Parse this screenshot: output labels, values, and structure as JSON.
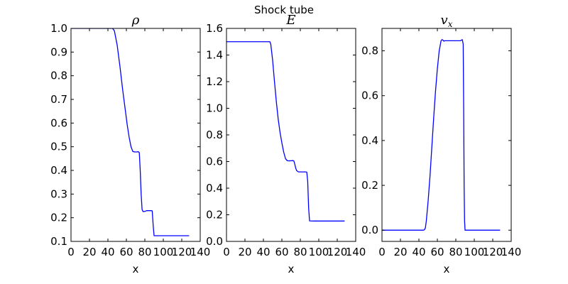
{
  "figure": {
    "title": "Shock tube"
  },
  "chart_data": [
    {
      "type": "line",
      "title": "ρ",
      "xlabel": "x",
      "ylabel": "",
      "xlim": [
        0,
        140
      ],
      "ylim": [
        0.1,
        1.0
      ],
      "xticks": [
        0,
        20,
        40,
        60,
        80,
        100,
        120,
        140
      ],
      "yticks": [
        0.1,
        0.2,
        0.3,
        0.4,
        0.5,
        0.6,
        0.7,
        0.8,
        0.9,
        1.0
      ],
      "ytick_labels": [
        "0.1",
        "0.2",
        "0.3",
        "0.4",
        "0.5",
        "0.6",
        "0.7",
        "0.8",
        "0.9",
        "1.0"
      ],
      "grid": false,
      "color": "#0000ff",
      "series": [
        {
          "x": [
            0,
            45,
            47,
            50,
            53,
            56,
            59,
            61,
            63,
            65,
            67,
            69,
            71,
            73,
            74,
            75,
            76,
            77,
            78,
            80,
            82,
            84,
            86,
            87,
            88,
            89,
            90,
            95,
            100,
            110,
            120,
            128
          ],
          "values": [
            1.0,
            1.0,
            0.99,
            0.93,
            0.84,
            0.74,
            0.65,
            0.59,
            0.54,
            0.5,
            0.48,
            0.478,
            0.478,
            0.479,
            0.475,
            0.4,
            0.3,
            0.235,
            0.226,
            0.227,
            0.23,
            0.23,
            0.23,
            0.23,
            0.229,
            0.17,
            0.124,
            0.124,
            0.124,
            0.124,
            0.124,
            0.124
          ]
        }
      ]
    },
    {
      "type": "line",
      "title": "E",
      "xlabel": "x",
      "ylabel": "",
      "xlim": [
        0,
        140
      ],
      "ylim": [
        0,
        1.6
      ],
      "xticks": [
        0,
        20,
        40,
        60,
        80,
        100,
        120,
        140
      ],
      "yticks": [
        0,
        0.2,
        0.4,
        0.6,
        0.8,
        1.0,
        1.2,
        1.4,
        1.6
      ],
      "ytick_labels": [
        "0.0",
        "0.2",
        "0.4",
        "0.6",
        "0.8",
        "1.0",
        "1.2",
        "1.4",
        "1.6"
      ],
      "grid": false,
      "color": "#0000ff",
      "series": [
        {
          "x": [
            0,
            45,
            47,
            48,
            50,
            52,
            54,
            56,
            58,
            60,
            62,
            64,
            66,
            68,
            70,
            72,
            73,
            74,
            75,
            76,
            78,
            80,
            82,
            84,
            86,
            87,
            88,
            89,
            90,
            95,
            100,
            110,
            120,
            128
          ],
          "values": [
            1.5,
            1.5,
            1.5,
            1.48,
            1.36,
            1.2,
            1.05,
            0.92,
            0.82,
            0.74,
            0.67,
            0.62,
            0.606,
            0.605,
            0.606,
            0.607,
            0.604,
            0.58,
            0.55,
            0.532,
            0.522,
            0.522,
            0.522,
            0.522,
            0.522,
            0.52,
            0.45,
            0.25,
            0.154,
            0.153,
            0.153,
            0.153,
            0.153,
            0.153
          ]
        }
      ]
    },
    {
      "type": "line",
      "title": "v_x",
      "title_main": "v",
      "title_sub": "x",
      "xlabel": "x",
      "ylabel": "",
      "xlim": [
        0,
        140
      ],
      "ylim": [
        -0.05,
        0.9
      ],
      "xticks": [
        0,
        20,
        40,
        60,
        80,
        100,
        120,
        140
      ],
      "yticks": [
        0.0,
        0.2,
        0.4,
        0.6,
        0.8
      ],
      "ytick_labels": [
        "0.0",
        "0.2",
        "0.4",
        "0.6",
        "0.8"
      ],
      "grid": false,
      "color": "#0000ff",
      "series": [
        {
          "x": [
            0,
            45,
            46,
            47,
            48,
            50,
            52,
            54,
            56,
            58,
            60,
            62,
            64,
            65,
            66,
            67,
            68,
            70,
            75,
            80,
            85,
            87,
            88,
            88.5,
            89,
            89.5,
            90,
            95,
            100,
            110,
            120,
            128
          ],
          "values": [
            0.0,
            0.0,
            0.002,
            0.01,
            0.04,
            0.13,
            0.24,
            0.37,
            0.5,
            0.62,
            0.72,
            0.8,
            0.845,
            0.85,
            0.848,
            0.843,
            0.845,
            0.845,
            0.845,
            0.845,
            0.845,
            0.85,
            0.83,
            0.55,
            0.2,
            0.04,
            0.0,
            0.0,
            0.0,
            0.0,
            0.0,
            0.0
          ]
        }
      ]
    }
  ]
}
